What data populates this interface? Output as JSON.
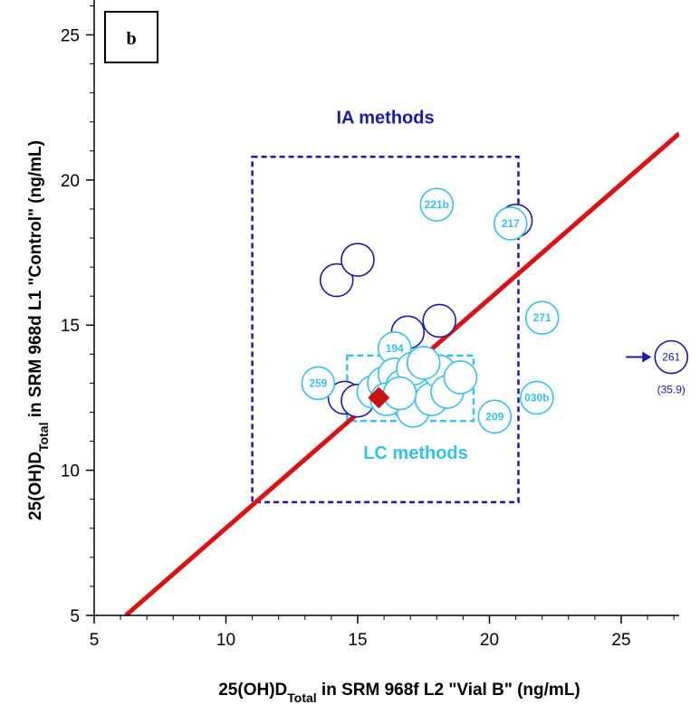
{
  "chart_data": {
    "type": "scatter",
    "panel_label": "b",
    "xlabel": {
      "main": "25(OH)D",
      "sub": "Total",
      "rest": "  in SRM 968f  L2 \"Vial B\" (ng/mL)"
    },
    "ylabel": {
      "main": "25(OH)D",
      "sub": "Total",
      "rest": "  in SRM 968d  L1  \"Control\"  (ng/mL)"
    },
    "xlim": [
      5,
      27.2
    ],
    "ylim": [
      5,
      26.2
    ],
    "xticks": [
      "5",
      "10",
      "15",
      "20",
      "25"
    ],
    "yticks": [
      "5",
      "10",
      "15",
      "20",
      "25"
    ],
    "grid": false,
    "colors": {
      "ia": "#1a1aa6",
      "lc": "#2ec4ee",
      "line": "#e01010",
      "target": "#cc1111"
    },
    "regions": [
      {
        "name": "IA methods",
        "x": [
          11,
          21.1
        ],
        "y": [
          8.9,
          20.8
        ]
      },
      {
        "name": "LC methods",
        "x": [
          14.6,
          19.4
        ],
        "y": [
          11.7,
          13.95
        ]
      }
    ],
    "reference_line": {
      "x": [
        6.2,
        27.2
      ],
      "y": [
        5,
        21.6
      ]
    },
    "target": {
      "x": 15.8,
      "y": 12.5
    },
    "series": [
      {
        "name": "IA methods",
        "points": [
          {
            "x": 14.2,
            "y": 16.55
          },
          {
            "x": 15.0,
            "y": 17.25
          },
          {
            "x": 16.9,
            "y": 14.75
          },
          {
            "x": 18.1,
            "y": 15.15
          },
          {
            "x": 21.0,
            "y": 18.6
          },
          {
            "x": 14.5,
            "y": 12.5
          },
          {
            "x": 15.0,
            "y": 12.4
          },
          {
            "x": 17.8,
            "y": 13.1
          },
          {
            "x": 26.9,
            "y": 13.9,
            "label": "261",
            "note": "(35.9)",
            "off_scale": true
          }
        ]
      },
      {
        "name": "LC methods",
        "points": [
          {
            "x": 18.0,
            "y": 19.15,
            "label": "221b"
          },
          {
            "x": 20.8,
            "y": 18.5,
            "label": "217"
          },
          {
            "x": 22.0,
            "y": 15.25,
            "label": "271"
          },
          {
            "x": 16.4,
            "y": 14.2,
            "label": "194"
          },
          {
            "x": 13.5,
            "y": 13.0,
            "label": "259"
          },
          {
            "x": 21.8,
            "y": 12.5,
            "label": "030b"
          },
          {
            "x": 20.2,
            "y": 11.85,
            "label": "209"
          },
          {
            "x": 15.6,
            "y": 12.7
          },
          {
            "x": 16.0,
            "y": 13.0
          },
          {
            "x": 16.4,
            "y": 13.3
          },
          {
            "x": 16.7,
            "y": 12.9
          },
          {
            "x": 16.9,
            "y": 12.3
          },
          {
            "x": 17.1,
            "y": 12.05
          },
          {
            "x": 17.3,
            "y": 13.0
          },
          {
            "x": 17.6,
            "y": 12.9
          },
          {
            "x": 17.8,
            "y": 12.45
          },
          {
            "x": 18.1,
            "y": 13.4
          },
          {
            "x": 18.4,
            "y": 12.7
          },
          {
            "x": 18.9,
            "y": 13.2
          },
          {
            "x": 17.1,
            "y": 13.5
          },
          {
            "x": 17.5,
            "y": 13.7
          },
          {
            "x": 16.1,
            "y": 12.45
          },
          {
            "x": 16.6,
            "y": 12.65
          }
        ]
      }
    ]
  }
}
